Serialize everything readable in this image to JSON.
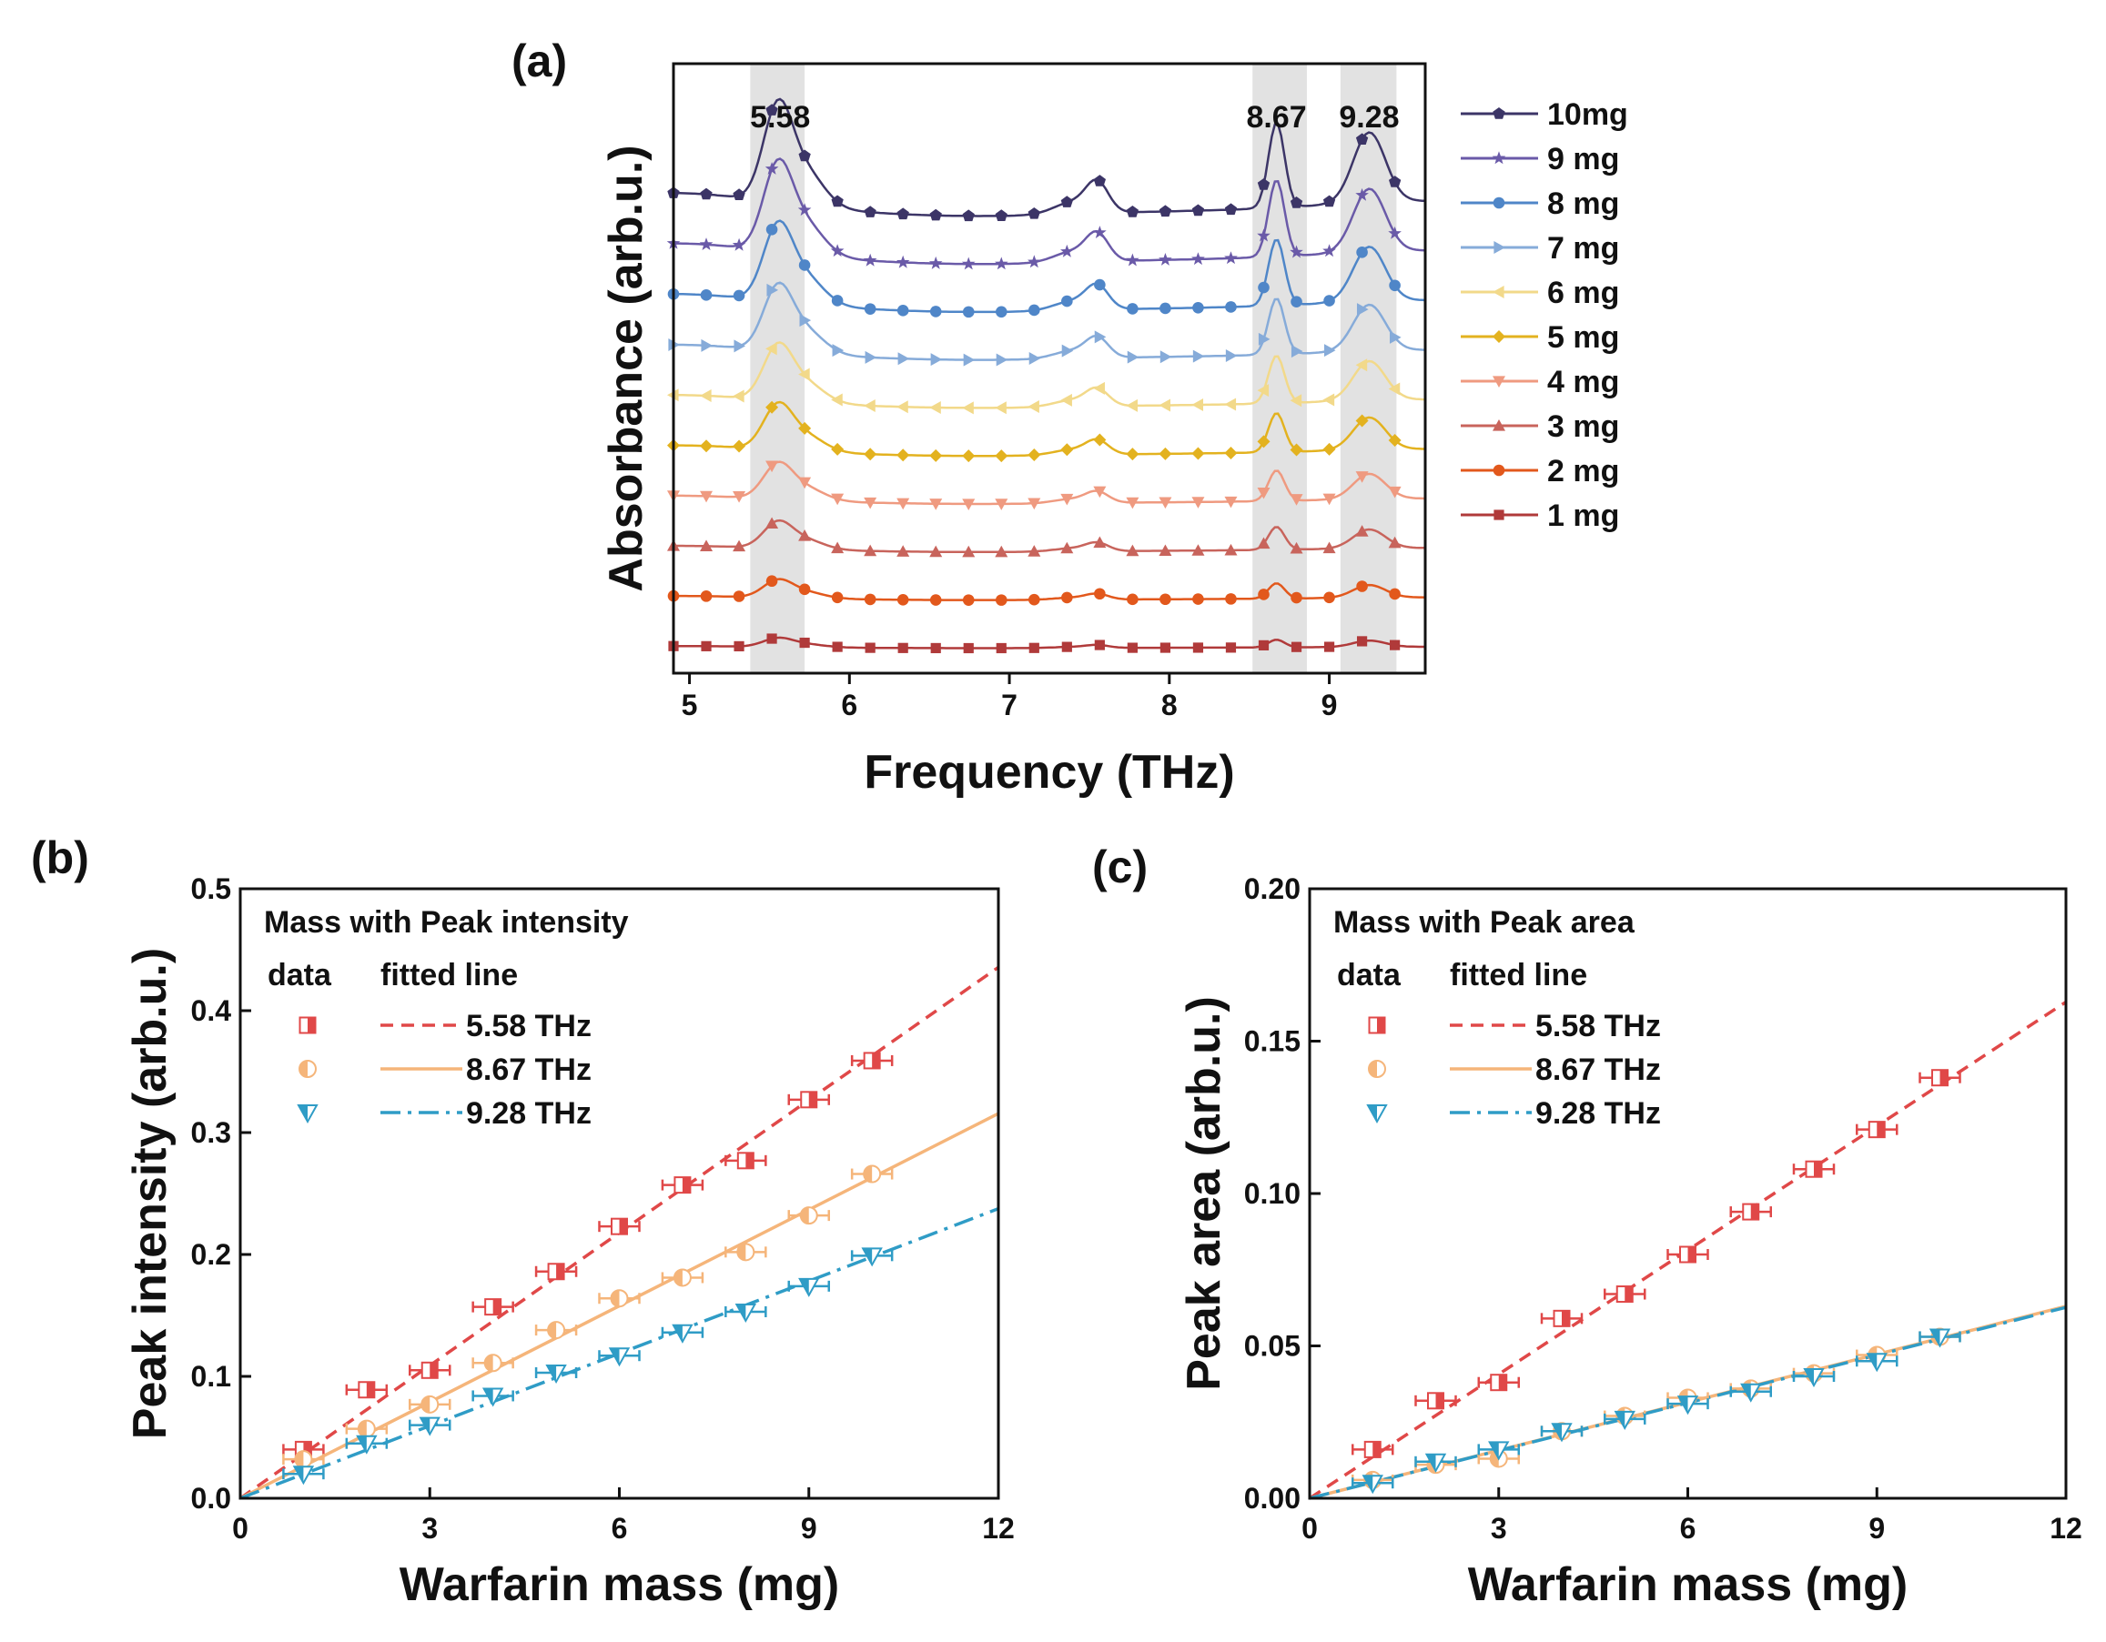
{
  "chart_data": [
    {
      "id": "a",
      "panel_label": "(a)",
      "type": "line",
      "xlabel": "Frequency (THz)",
      "ylabel": "Absorbance (arb.u.)",
      "xlim": [
        4.9,
        9.6
      ],
      "xticks": [
        "5",
        "6",
        "7",
        "8",
        "9"
      ],
      "peaks": [
        {
          "label": "5.58",
          "center": 5.55,
          "band": [
            5.38,
            5.72
          ]
        },
        {
          "label": "8.67",
          "center": 8.67,
          "band": [
            8.52,
            8.86
          ]
        },
        {
          "label": "9.28",
          "center": 9.25,
          "band": [
            9.07,
            9.42
          ]
        }
      ],
      "series": [
        {
          "name": "10mg",
          "color": "#3c3567",
          "marker": "pentagon",
          "scale": 1.0
        },
        {
          "name": "9 mg",
          "color": "#6a5aa8",
          "marker": "star",
          "scale": 0.9
        },
        {
          "name": "8 mg",
          "color": "#4f86c8",
          "marker": "circle",
          "scale": 0.78
        },
        {
          "name": "7 mg",
          "color": "#86abd9",
          "marker": "triangle-right",
          "scale": 0.66
        },
        {
          "name": "6 mg",
          "color": "#f2d98a",
          "marker": "triangle-left",
          "scale": 0.56
        },
        {
          "name": "5 mg",
          "color": "#e3b21f",
          "marker": "diamond",
          "scale": 0.46
        },
        {
          "name": "4 mg",
          "color": "#ef9a80",
          "marker": "triangle-down",
          "scale": 0.36
        },
        {
          "name": "3 mg",
          "color": "#c8645c",
          "marker": "triangle-up",
          "scale": 0.27
        },
        {
          "name": "2 mg",
          "color": "#e2581c",
          "marker": "circle",
          "scale": 0.18
        },
        {
          "name": "1 mg",
          "color": "#b03a3a",
          "marker": "square",
          "scale": 0.09
        }
      ]
    },
    {
      "id": "b",
      "panel_label": "(b)",
      "type": "scatter",
      "xlabel": "Warfarin mass (mg)",
      "ylabel": "Peak intensity (arb.u.)",
      "xlim": [
        0,
        12
      ],
      "ylim": [
        0,
        0.5
      ],
      "xticks": [
        0,
        3,
        6,
        9,
        12
      ],
      "xtick_labels": [
        "0",
        "3",
        "6",
        "9",
        "12"
      ],
      "yticks": [
        0,
        0.1,
        0.2,
        0.3,
        0.4,
        0.5
      ],
      "ytick_labels": [
        "0.0",
        "0.1",
        "0.2",
        "0.3",
        "0.4",
        "0.5"
      ],
      "legend_title": "Mass with Peak intensity",
      "legend_header": [
        "data",
        "fitted line"
      ],
      "x": [
        1,
        2,
        3,
        4,
        5,
        6,
        7,
        8,
        9,
        10
      ],
      "series": [
        {
          "name": "5.58 THz",
          "color": "#e04848",
          "marker": "square-half",
          "dash": "dashed",
          "values": [
            0.04,
            0.089,
            0.105,
            0.157,
            0.186,
            0.223,
            0.257,
            0.277,
            0.327,
            0.359
          ],
          "fit_slope": 0.0363
        },
        {
          "name": "8.67 THz",
          "color": "#f5b57a",
          "marker": "circle-half",
          "dash": "solid",
          "values": [
            0.032,
            0.057,
            0.077,
            0.111,
            0.138,
            0.164,
            0.181,
            0.202,
            0.232,
            0.266
          ],
          "fit_slope": 0.0263
        },
        {
          "name": "9.28 THz",
          "color": "#2f9cc6",
          "marker": "triangle-down-half",
          "dash": "dashdot",
          "values": [
            0.02,
            0.045,
            0.06,
            0.084,
            0.103,
            0.117,
            0.136,
            0.153,
            0.174,
            0.199
          ],
          "fit_slope": 0.0198
        }
      ]
    },
    {
      "id": "c",
      "panel_label": "(c)",
      "type": "scatter",
      "xlabel": "Warfarin mass (mg)",
      "ylabel": "Peak area (arb.u.)",
      "xlim": [
        0,
        12
      ],
      "ylim": [
        0,
        0.2
      ],
      "xticks": [
        0,
        3,
        6,
        9,
        12
      ],
      "xtick_labels": [
        "0",
        "3",
        "6",
        "9",
        "12"
      ],
      "yticks": [
        0,
        0.05,
        0.1,
        0.15,
        0.2
      ],
      "ytick_labels": [
        "0.00",
        "0.05",
        "0.10",
        "0.15",
        "0.20"
      ],
      "legend_title": "Mass with Peak area",
      "legend_header": [
        "data",
        "fitted line"
      ],
      "x": [
        1,
        2,
        3,
        4,
        5,
        6,
        7,
        8,
        9,
        10
      ],
      "series": [
        {
          "name": "5.58 THz",
          "color": "#e04848",
          "marker": "square-half",
          "dash": "dashed",
          "values": [
            0.016,
            0.032,
            0.038,
            0.059,
            0.067,
            0.08,
            0.094,
            0.108,
            0.121,
            0.138
          ],
          "fit_slope": 0.01357
        },
        {
          "name": "8.67 THz",
          "color": "#f5b57a",
          "marker": "circle-half",
          "dash": "solid",
          "values": [
            0.006,
            0.011,
            0.013,
            0.022,
            0.027,
            0.033,
            0.036,
            0.041,
            0.047,
            0.053
          ],
          "fit_slope": 0.00525
        },
        {
          "name": "9.28 THz",
          "color": "#2f9cc6",
          "marker": "triangle-down-half",
          "dash": "dashdot",
          "values": [
            0.005,
            0.012,
            0.016,
            0.022,
            0.026,
            0.031,
            0.035,
            0.04,
            0.045,
            0.053
          ],
          "fit_slope": 0.00522
        }
      ]
    }
  ]
}
